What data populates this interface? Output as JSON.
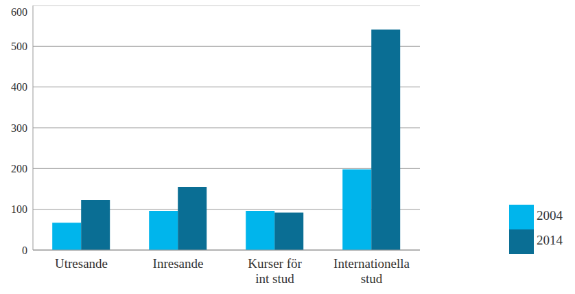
{
  "chart_data": {
    "type": "bar",
    "categories": [
      "Utresande",
      "Inresande",
      "Kurser för\nint stud",
      "Internationella\nstud"
    ],
    "series": [
      {
        "name": "2004",
        "color": "#00b5ec",
        "values": [
          67,
          96,
          96,
          198
        ]
      },
      {
        "name": "2014",
        "color": "#0a6e94",
        "values": [
          123,
          155,
          92,
          541
        ]
      }
    ],
    "ylim": [
      0,
      600
    ],
    "yticks": [
      0,
      100,
      200,
      300,
      400,
      500,
      600
    ],
    "grid": true,
    "legend": "right"
  }
}
